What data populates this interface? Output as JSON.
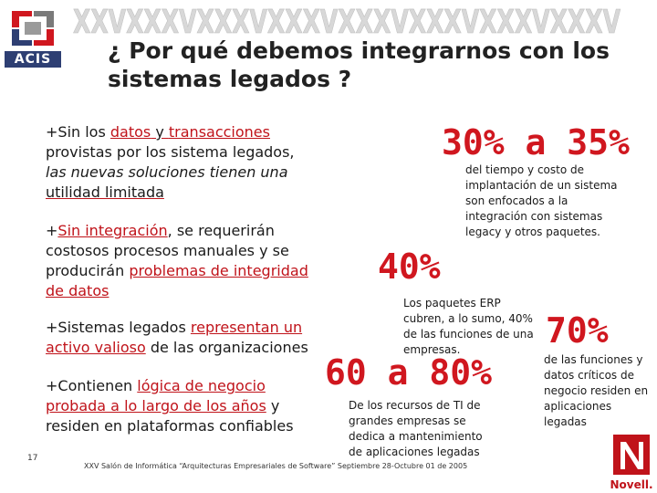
{
  "header": {
    "logo_text": "ACIS",
    "banner_text": "XXVXXXVXXXVXXXVXXXVXXXVXXXVXXXV",
    "title": "¿ Por qué debemos integrarnos con los sistemas legados ?"
  },
  "left": {
    "p1": {
      "bullet": "+",
      "t1": "Sin los ",
      "l1": "datos",
      "t2": " y ",
      "l2": "transacciones",
      "t3": " provistas por los sistema legados, ",
      "t4": "las nuevas soluciones tienen una",
      "t5": " ",
      "t6": "utilidad limitada"
    },
    "p2": {
      "bullet": "+",
      "l1": "Sin integración",
      "t1": ", se requerirán costosos procesos manuales y se producirán ",
      "l2": "problemas de integridad de datos"
    },
    "p3": {
      "bullet": "+",
      "t1": "Sistemas legados ",
      "l1": "representan un activo valioso",
      "t2": " de las organizaciones"
    },
    "p4": {
      "bullet": "+",
      "t1": "Contienen ",
      "l1": "lógica de negocio probada a lo largo de los años",
      "t2": " y residen en plataformas confiables"
    }
  },
  "stats": [
    {
      "value": "30% a 35%",
      "desc": "del tiempo y costo de implantación de un sistema son enfocados a la integración con sistemas legacy y otros paquetes."
    },
    {
      "value": "40%",
      "desc": "Los paquetes ERP cubren, a lo sumo, 40% de las funciones de una empresas."
    },
    {
      "value": "60 a 80%",
      "desc": "De los recursos de TI de grandes empresas se dedica a mantenimiento de aplicaciones legadas"
    },
    {
      "value": "70%",
      "desc": "de las funciones y datos críticos de negocio residen en aplicaciones legadas"
    }
  ],
  "footer": {
    "slide_number": "17",
    "text": "XXV Salón de Informática “Arquitecturas Empresariales de Software” Septiembre 28-Octubre 01 de 2005",
    "brand": "Novell."
  },
  "colors": {
    "accent": "#d0171f",
    "logo_band": "#2e3f73"
  }
}
